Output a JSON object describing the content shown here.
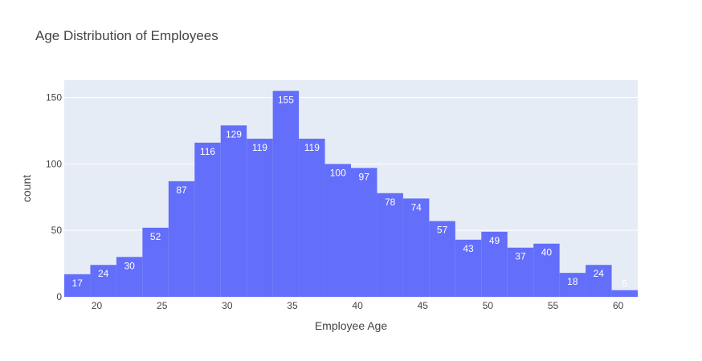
{
  "chart_data": {
    "type": "bar",
    "title": "Age Distribution of Employees",
    "xlabel": "Employee Age",
    "ylabel": "count",
    "xlim": [
      17.5,
      61.5
    ],
    "ylim": [
      0,
      163
    ],
    "x_ticks": [
      20,
      25,
      30,
      35,
      40,
      45,
      50,
      55,
      60
    ],
    "y_ticks": [
      0,
      50,
      100,
      150
    ],
    "bin_width": 2,
    "bin_starts": [
      17.5,
      19.5,
      21.5,
      23.5,
      25.5,
      27.5,
      29.5,
      31.5,
      33.5,
      35.5,
      37.5,
      39.5,
      41.5,
      43.5,
      45.5,
      47.5,
      49.5,
      51.5,
      53.5,
      55.5,
      57.5,
      59.5
    ],
    "values": [
      17,
      24,
      30,
      52,
      87,
      116,
      129,
      119,
      155,
      119,
      100,
      97,
      78,
      74,
      57,
      43,
      49,
      37,
      40,
      18,
      24,
      5
    ],
    "grid": true,
    "colors": {
      "bar": "#636efa",
      "plot_bg": "#e5ecf6",
      "grid": "#ffffff",
      "text": "#444444",
      "label": "#ffffff"
    }
  }
}
